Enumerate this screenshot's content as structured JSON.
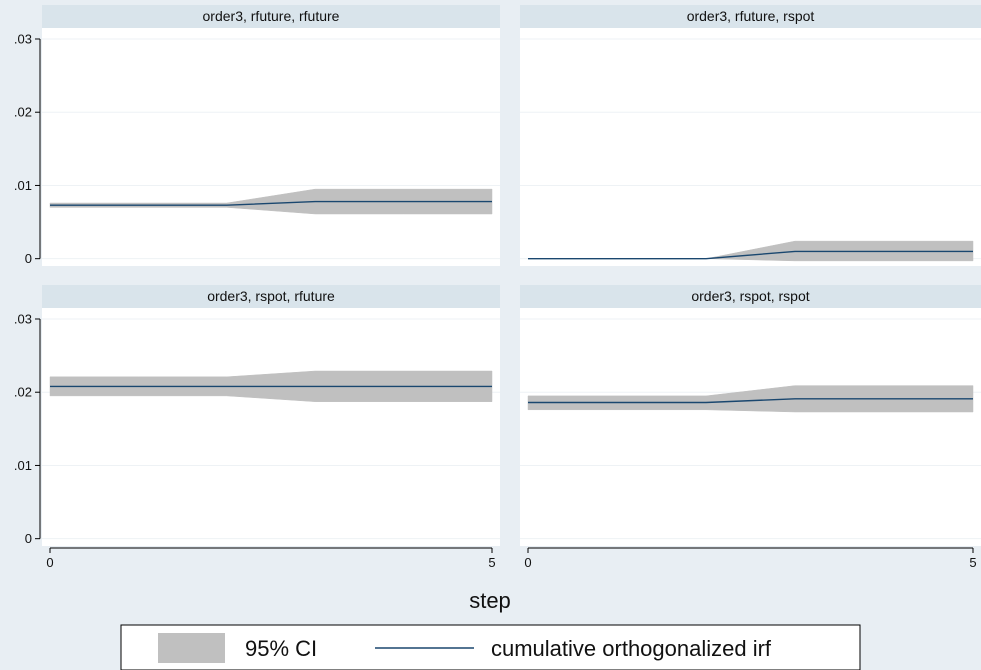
{
  "chart_data": {
    "type": "line",
    "xlabel": "step",
    "x_ticks": [
      0,
      5
    ],
    "y_ticks": [
      0,
      0.01,
      0.02,
      0.03
    ],
    "y_tick_labels": [
      "0",
      ".01",
      ".02",
      ".03"
    ],
    "ylim": [
      -0.001,
      0.0315
    ],
    "xlim": [
      0,
      5
    ],
    "grid": true,
    "legend_position": "bottom",
    "colors": {
      "background": "#e8eef3",
      "panel": "#ffffff",
      "strip": "#d9e4eb",
      "ci_band": "#c0c0c0",
      "line": "#1a476f",
      "grid": "#eef2f5"
    },
    "legend": [
      {
        "label": "95% CI",
        "kind": "band"
      },
      {
        "label": "cumulative orthogonalized irf",
        "kind": "line"
      }
    ],
    "panels": [
      {
        "title": "order3, rfuture, rfuture",
        "x": [
          0,
          1,
          2,
          3,
          4,
          5
        ],
        "irf": [
          0.0073,
          0.0073,
          0.0073,
          0.0078,
          0.0078,
          0.0078
        ],
        "lower": [
          0.007,
          0.007,
          0.007,
          0.0061,
          0.0061,
          0.0061
        ],
        "upper": [
          0.0076,
          0.0076,
          0.0076,
          0.0095,
          0.0095,
          0.0095
        ]
      },
      {
        "title": "order3, rfuture, rspot",
        "x": [
          0,
          1,
          2,
          3,
          4,
          5
        ],
        "irf": [
          0,
          0,
          0,
          0.001,
          0.001,
          0.001
        ],
        "lower": [
          0,
          0,
          0,
          -0.0003,
          -0.0003,
          -0.0003
        ],
        "upper": [
          0,
          0,
          0,
          0.0024,
          0.0024,
          0.0024
        ]
      },
      {
        "title": "order3, rspot, rfuture",
        "x": [
          0,
          1,
          2,
          3,
          4,
          5
        ],
        "irf": [
          0.0208,
          0.0208,
          0.0208,
          0.0208,
          0.0208,
          0.0208
        ],
        "lower": [
          0.0195,
          0.0195,
          0.0195,
          0.0187,
          0.0187,
          0.0187
        ],
        "upper": [
          0.0221,
          0.0221,
          0.0221,
          0.0229,
          0.0229,
          0.0229
        ]
      },
      {
        "title": "order3, rspot, rspot",
        "x": [
          0,
          1,
          2,
          3,
          4,
          5
        ],
        "irf": [
          0.0186,
          0.0186,
          0.0186,
          0.0191,
          0.0191,
          0.0191
        ],
        "lower": [
          0.0176,
          0.0176,
          0.0176,
          0.0173,
          0.0173,
          0.0173
        ],
        "upper": [
          0.0195,
          0.0195,
          0.0195,
          0.0209,
          0.0209,
          0.0209
        ]
      }
    ]
  }
}
